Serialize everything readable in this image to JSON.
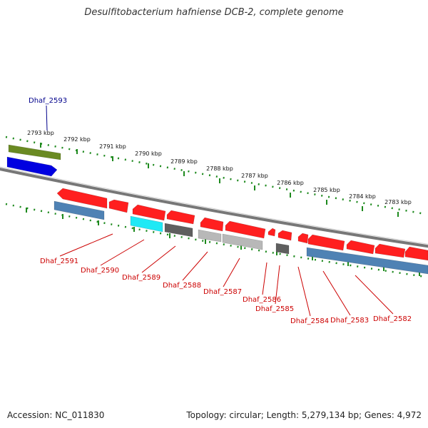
{
  "title": "Desulfitobacterium hafniense DCB-2, complete genome",
  "footer": {
    "accession": "Accession: NC_011830",
    "summary": "Topology: circular; Length: 5,279,134 bp; Genes: 4,972"
  },
  "scale_ticks": [
    "2793 kbp",
    "2792 kbp",
    "2791 kbp",
    "2790 kbp",
    "2789 kbp",
    "2788 kbp",
    "2787 kbp",
    "2786 kbp",
    "2785 kbp",
    "2784 kbp",
    "2783 kbp"
  ],
  "colors": {
    "forward_gene": "#ff1f1f",
    "reverse_gene": "#0000e0",
    "dark_gray_gene": "#5f5f5f",
    "light_gray_gene": "#b8b8b8",
    "cyan_gene": "#1fe9f5",
    "steel_blue_track": "#4f82b4",
    "olive_track": "#6a8a22",
    "backbone": "#777777",
    "tick_green": "#1e8a1e"
  },
  "gene_labels": [
    "Dhaf_2593",
    "Dhaf_2591",
    "Dhaf_2590",
    "Dhaf_2589",
    "Dhaf_2588",
    "Dhaf_2587",
    "Dhaf_2586",
    "Dhaf_2585",
    "Dhaf_2584",
    "Dhaf_2583",
    "Dhaf_2582"
  ]
}
